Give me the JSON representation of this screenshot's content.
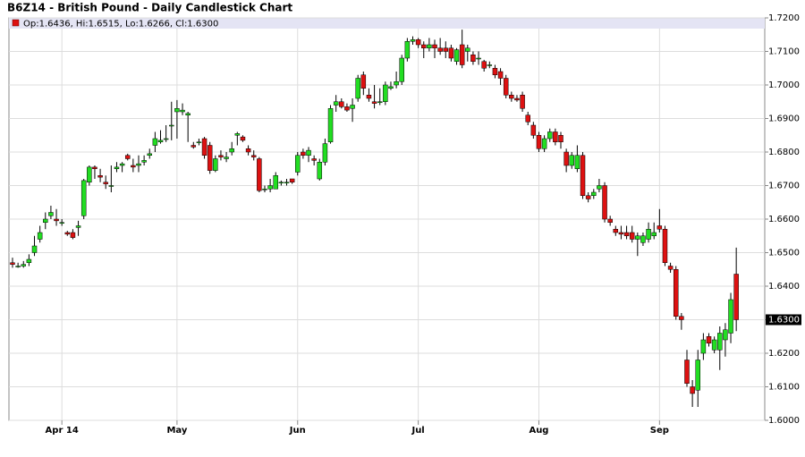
{
  "chart_data": {
    "type": "candlestick",
    "title": "B6Z14 - British Pound - Daily Candlestick Chart",
    "legend": "Op:1.6436, Hi:1.6515, Lo:1.6266, Cl:1.6300",
    "categories": [
      null,
      null,
      null,
      null,
      null,
      null,
      null,
      null,
      null,
      "Apr 14",
      null,
      null,
      null,
      null,
      null,
      null,
      null,
      null,
      null,
      null,
      null,
      null,
      null,
      null,
      null,
      null,
      null,
      null,
      null,
      null,
      "May",
      null,
      null,
      null,
      null,
      null,
      null,
      null,
      null,
      null,
      null,
      null,
      null,
      null,
      null,
      null,
      null,
      null,
      null,
      null,
      null,
      null,
      "Jun",
      null,
      null,
      null,
      null,
      null,
      null,
      null,
      null,
      null,
      null,
      null,
      null,
      null,
      null,
      null,
      null,
      null,
      null,
      null,
      null,
      null,
      "Jul",
      null,
      null,
      null,
      null,
      null,
      null,
      null,
      null,
      null,
      null,
      null,
      null,
      null,
      null,
      null,
      null,
      null,
      null,
      null,
      null,
      null,
      "Aug",
      null,
      null,
      null,
      null,
      null,
      null,
      null,
      null,
      null,
      null,
      null,
      null,
      null,
      null,
      null,
      null,
      null,
      null,
      null,
      null,
      null,
      "Sep",
      null,
      null,
      null,
      null,
      null,
      null,
      null,
      null,
      null,
      null,
      null,
      null,
      null,
      null
    ],
    "open": [
      1.647,
      1.646,
      1.646,
      1.647,
      1.65,
      1.654,
      1.659,
      1.661,
      1.66,
      1.659,
      1.656,
      1.656,
      1.6575,
      1.661,
      1.671,
      1.6755,
      1.673,
      1.671,
      1.67,
      1.675,
      1.676,
      1.679,
      1.676,
      1.676,
      1.677,
      1.679,
      1.682,
      1.683,
      1.684,
      1.688,
      1.692,
      1.692,
      1.691,
      1.682,
      1.683,
      1.684,
      1.682,
      1.6745,
      1.679,
      1.678,
      1.68,
      1.685,
      1.6845,
      1.681,
      1.679,
      1.678,
      1.669,
      1.669,
      1.669,
      1.671,
      1.671,
      1.672,
      1.674,
      1.68,
      1.679,
      1.678,
      1.672,
      1.677,
      1.683,
      1.694,
      1.695,
      1.6935,
      1.693,
      1.696,
      1.703,
      1.697,
      1.695,
      1.695,
      1.695,
      1.699,
      1.7,
      1.701,
      1.708,
      1.713,
      1.7135,
      1.712,
      1.711,
      1.712,
      1.711,
      1.711,
      1.711,
      1.707,
      1.712,
      1.71,
      1.709,
      1.708,
      1.707,
      1.706,
      1.705,
      1.704,
      1.702,
      1.697,
      1.696,
      1.697,
      1.691,
      1.688,
      1.685,
      1.681,
      1.684,
      1.686,
      1.685,
      1.68,
      1.676,
      1.675,
      1.679,
      1.667,
      1.667,
      1.669,
      1.67,
      1.66,
      1.657,
      1.656,
      1.656,
      1.656,
      1.654,
      1.653,
      1.654,
      1.655,
      1.658,
      1.657,
      1.646,
      1.645,
      1.631,
      1.618,
      1.61,
      1.609,
      1.62,
      1.625,
      1.621,
      1.621,
      1.624,
      1.626,
      1.6436
    ],
    "high": [
      1.6485,
      1.647,
      1.6475,
      1.6495,
      1.655,
      1.658,
      1.662,
      1.664,
      1.663,
      1.66,
      1.6565,
      1.657,
      1.6595,
      1.672,
      1.676,
      1.676,
      1.675,
      1.673,
      1.676,
      1.677,
      1.677,
      1.6795,
      1.678,
      1.679,
      1.679,
      1.681,
      1.686,
      1.6865,
      1.688,
      1.695,
      1.6955,
      1.6945,
      1.692,
      1.683,
      1.684,
      1.6845,
      1.683,
      1.679,
      1.6805,
      1.68,
      1.683,
      1.686,
      1.685,
      1.682,
      1.6805,
      1.6785,
      1.67,
      1.672,
      1.674,
      1.6715,
      1.672,
      1.672,
      1.68,
      1.681,
      1.6815,
      1.679,
      1.678,
      1.684,
      1.694,
      1.697,
      1.696,
      1.6945,
      1.696,
      1.703,
      1.704,
      1.699,
      1.7,
      1.699,
      1.701,
      1.701,
      1.704,
      1.709,
      1.714,
      1.7145,
      1.714,
      1.713,
      1.714,
      1.7135,
      1.714,
      1.713,
      1.712,
      1.711,
      1.7165,
      1.712,
      1.71,
      1.71,
      1.7075,
      1.707,
      1.706,
      1.705,
      1.703,
      1.698,
      1.697,
      1.698,
      1.692,
      1.689,
      1.686,
      1.685,
      1.687,
      1.687,
      1.686,
      1.681,
      1.68,
      1.682,
      1.68,
      1.668,
      1.669,
      1.672,
      1.671,
      1.661,
      1.658,
      1.658,
      1.658,
      1.658,
      1.656,
      1.656,
      1.659,
      1.659,
      1.663,
      1.658,
      1.647,
      1.646,
      1.632,
      1.621,
      1.612,
      1.621,
      1.626,
      1.626,
      1.625,
      1.628,
      1.629,
      1.638,
      1.6515
    ],
    "low": [
      1.6455,
      1.6455,
      1.6455,
      1.646,
      1.649,
      1.653,
      1.657,
      1.66,
      1.658,
      1.658,
      1.655,
      1.654,
      1.655,
      1.66,
      1.67,
      1.672,
      1.671,
      1.669,
      1.668,
      1.674,
      1.674,
      1.6775,
      1.674,
      1.674,
      1.676,
      1.678,
      1.68,
      1.6825,
      1.683,
      1.6835,
      1.684,
      1.691,
      1.683,
      1.681,
      1.682,
      1.678,
      1.6735,
      1.674,
      1.6775,
      1.677,
      1.679,
      1.682,
      1.683,
      1.679,
      1.6775,
      1.668,
      1.668,
      1.668,
      1.669,
      1.67,
      1.67,
      1.6705,
      1.673,
      1.678,
      1.677,
      1.676,
      1.6715,
      1.676,
      1.6825,
      1.692,
      1.693,
      1.692,
      1.689,
      1.695,
      1.697,
      1.695,
      1.693,
      1.694,
      1.694,
      1.6985,
      1.699,
      1.7,
      1.707,
      1.712,
      1.711,
      1.708,
      1.71,
      1.708,
      1.709,
      1.708,
      1.707,
      1.706,
      1.705,
      1.707,
      1.706,
      1.706,
      1.704,
      1.705,
      1.702,
      1.7,
      1.696,
      1.695,
      1.695,
      1.692,
      1.688,
      1.684,
      1.68,
      1.68,
      1.683,
      1.682,
      1.681,
      1.674,
      1.675,
      1.674,
      1.666,
      1.665,
      1.666,
      1.668,
      1.659,
      1.658,
      1.655,
      1.654,
      1.654,
      1.653,
      1.649,
      1.652,
      1.653,
      1.654,
      1.656,
      1.646,
      1.644,
      1.63,
      1.627,
      1.61,
      1.604,
      1.604,
      1.618,
      1.622,
      1.62,
      1.615,
      1.619,
      1.623,
      1.6266
    ],
    "close": [
      1.6465,
      1.646,
      1.6465,
      1.648,
      1.652,
      1.656,
      1.66,
      1.662,
      1.6595,
      1.659,
      1.6555,
      1.6545,
      1.658,
      1.6715,
      1.6755,
      1.675,
      1.6725,
      1.6705,
      1.67,
      1.6755,
      1.6765,
      1.678,
      1.6755,
      1.6765,
      1.6775,
      1.6795,
      1.684,
      1.6835,
      1.684,
      1.688,
      1.693,
      1.6925,
      1.6915,
      1.6815,
      1.683,
      1.679,
      1.6745,
      1.678,
      1.6785,
      1.6785,
      1.681,
      1.6855,
      1.6835,
      1.68,
      1.6785,
      1.6685,
      1.669,
      1.67,
      1.673,
      1.671,
      1.671,
      1.671,
      1.679,
      1.679,
      1.6805,
      1.6775,
      1.677,
      1.6825,
      1.693,
      1.695,
      1.6935,
      1.6925,
      1.694,
      1.702,
      1.699,
      1.696,
      1.6945,
      1.695,
      1.7,
      1.6995,
      1.701,
      1.708,
      1.713,
      1.7135,
      1.712,
      1.711,
      1.712,
      1.711,
      1.71,
      1.71,
      1.708,
      1.7105,
      1.706,
      1.711,
      1.707,
      1.708,
      1.705,
      1.706,
      1.703,
      1.702,
      1.697,
      1.696,
      1.6955,
      1.693,
      1.689,
      1.685,
      1.681,
      1.684,
      1.686,
      1.683,
      1.683,
      1.676,
      1.679,
      1.679,
      1.667,
      1.666,
      1.668,
      1.67,
      1.66,
      1.659,
      1.656,
      1.6555,
      1.655,
      1.654,
      1.655,
      1.655,
      1.657,
      1.656,
      1.657,
      1.647,
      1.645,
      1.631,
      1.63,
      1.611,
      1.608,
      1.618,
      1.624,
      1.623,
      1.624,
      1.626,
      1.627,
      1.636,
      1.63
    ],
    "up_color": "#22dd22",
    "down_color": "#dd1111",
    "last_price": {
      "value": 1.63,
      "label": "1.6300"
    },
    "ylim": [
      1.6,
      1.72
    ],
    "yticks": [
      {
        "value": 1.6,
        "label": "1.6000"
      },
      {
        "value": 1.61,
        "label": "1.6100"
      },
      {
        "value": 1.62,
        "label": "1.6200"
      },
      {
        "value": 1.63,
        "label": "1.6300"
      },
      {
        "value": 1.64,
        "label": "1.6400"
      },
      {
        "value": 1.65,
        "label": "1.6500"
      },
      {
        "value": 1.66,
        "label": "1.6600"
      },
      {
        "value": 1.67,
        "label": "1.6700"
      },
      {
        "value": 1.68,
        "label": "1.6800"
      },
      {
        "value": 1.69,
        "label": "1.6900"
      },
      {
        "value": 1.7,
        "label": "1.7000"
      },
      {
        "value": 1.71,
        "label": "1.7100"
      },
      {
        "value": 1.72,
        "label": "1.7200"
      }
    ],
    "grid": true
  }
}
